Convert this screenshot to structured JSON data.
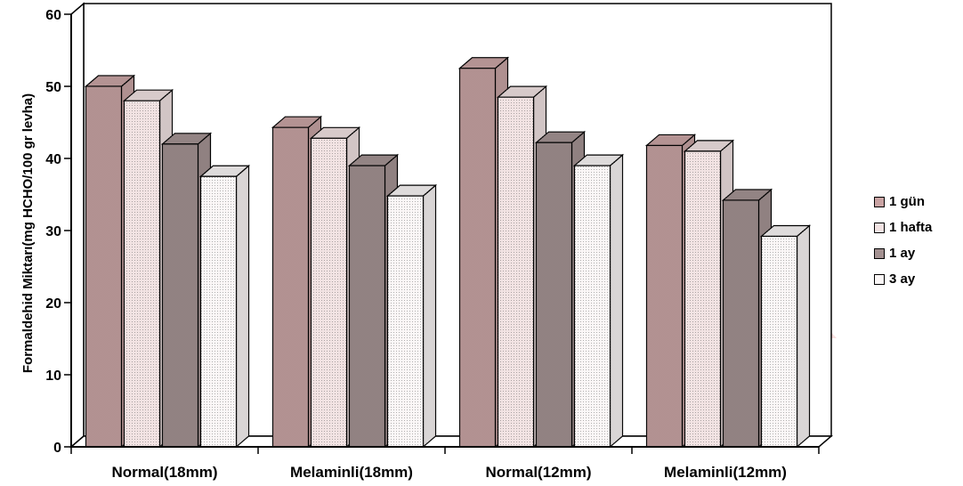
{
  "chart_data": {
    "type": "bar",
    "categories": [
      "Normal(18mm)",
      "Melaminli(18mm)",
      "Normal(12mm)",
      "Melaminli(12mm)"
    ],
    "series": [
      {
        "name": "1 gün",
        "values": [
          50.0,
          44.3,
          52.5,
          41.8
        ]
      },
      {
        "name": "1 hafta",
        "values": [
          48.0,
          42.8,
          48.5,
          41.0
        ]
      },
      {
        "name": "1 ay",
        "values": [
          42.0,
          39.0,
          42.2,
          34.2
        ]
      },
      {
        "name": "3 ay",
        "values": [
          37.5,
          34.8,
          39.0,
          29.2
        ]
      }
    ],
    "ylabel": "Formaldehid Miktarı(mg HCHO/100 gr levha)",
    "xlabel": "",
    "title": "",
    "ylim": [
      0,
      60
    ],
    "yticks": [
      0,
      10,
      20,
      30,
      40,
      50,
      60
    ],
    "legend_position": "right",
    "colors": [
      "#c9a3a3",
      "#f2e3e3",
      "#a39191",
      "#fbf7f7"
    ],
    "grid": false
  }
}
